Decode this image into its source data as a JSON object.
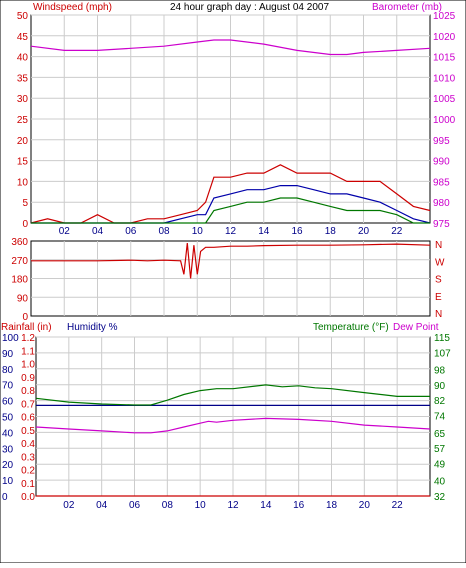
{
  "header": {
    "left_label": "Windspeed (mph)",
    "center_title": "24 hour graph day : August 04 2007",
    "right_label": "Barometer (mb)"
  },
  "bottom_header": {
    "rainfall_label": "Rainfall (in)",
    "humidity_label": "Humidity %",
    "temperature_label": "Temperature (°F)",
    "dewpoint_label": "Dew Point"
  },
  "colors": {
    "red": "#cc0000",
    "blue": "#0000aa",
    "green": "#007700",
    "magenta": "#cc00cc",
    "navy": "#000088",
    "grid": "#cccccc"
  },
  "chart_data": [
    {
      "type": "line",
      "name": "wind-baro",
      "x_ticks": [
        "02",
        "04",
        "06",
        "08",
        "10",
        "12",
        "14",
        "16",
        "18",
        "20",
        "22"
      ],
      "x_range": [
        0,
        24
      ],
      "left_axis": {
        "label": "Windspeed (mph)",
        "ticks": [
          "0",
          "5",
          "10",
          "15",
          "20",
          "25",
          "30",
          "35",
          "40",
          "45",
          "50"
        ],
        "range": [
          0,
          50
        ]
      },
      "right_axis": {
        "label": "Barometer (mb)",
        "ticks": [
          "975",
          "980",
          "985",
          "990",
          "995",
          "1000",
          "1005",
          "1010",
          "1015",
          "1020",
          "1025"
        ],
        "range": [
          975,
          1025
        ]
      },
      "series": [
        {
          "color": "magenta",
          "axis": "right",
          "x": [
            0,
            2,
            4,
            6,
            8,
            10,
            11,
            12,
            14,
            16,
            18,
            19,
            20,
            22,
            24
          ],
          "values": [
            1017.5,
            1016.5,
            1016.5,
            1017,
            1017.5,
            1018.5,
            1019,
            1019,
            1018,
            1016.5,
            1015.5,
            1015.5,
            1016,
            1016.5,
            1017
          ]
        },
        {
          "color": "red",
          "axis": "left",
          "x": [
            0,
            1,
            2,
            3,
            4,
            5,
            6,
            7,
            8,
            9,
            10,
            10.5,
            11,
            11.5,
            12,
            13,
            14,
            15,
            16,
            17,
            18,
            19,
            20,
            21,
            22,
            23,
            24
          ],
          "values": [
            0,
            1,
            0,
            0,
            2,
            0,
            0,
            1,
            1,
            2,
            3,
            5,
            11,
            11,
            11,
            12,
            12,
            14,
            12,
            12,
            12,
            10,
            10,
            10,
            7,
            4,
            3
          ]
        },
        {
          "color": "blue",
          "axis": "left",
          "x": [
            0,
            8,
            9,
            10,
            10.5,
            11,
            12,
            13,
            14,
            15,
            16,
            17,
            18,
            19,
            20,
            21,
            22,
            23,
            24
          ],
          "values": [
            0,
            0,
            1,
            2,
            2,
            6,
            7,
            8,
            8,
            9,
            9,
            8,
            7,
            7,
            6,
            5,
            3,
            1,
            0
          ]
        },
        {
          "color": "green",
          "axis": "left",
          "x": [
            0,
            9,
            10,
            10.5,
            11,
            12,
            13,
            14,
            15,
            16,
            17,
            18,
            19,
            20,
            21,
            22,
            23,
            24
          ],
          "values": [
            0,
            0,
            0,
            0,
            3,
            4,
            5,
            5,
            6,
            6,
            5,
            4,
            3,
            3,
            3,
            2,
            0,
            0
          ]
        }
      ]
    },
    {
      "type": "line",
      "name": "wind-direction",
      "left_axis": {
        "ticks": [
          "0",
          "90",
          "180",
          "270",
          "360"
        ],
        "range": [
          0,
          360
        ]
      },
      "right_axis": {
        "ticks": [
          "N",
          "W",
          "S",
          "E",
          "N"
        ]
      },
      "x_range": [
        0,
        24
      ],
      "series": [
        {
          "color": "red",
          "x": [
            0,
            2,
            4,
            6,
            7,
            8,
            9,
            9.2,
            9.4,
            9.6,
            9.8,
            10,
            10.2,
            10.5,
            11,
            12,
            13,
            14,
            16,
            18,
            20,
            22,
            24
          ],
          "values": [
            265,
            265,
            265,
            268,
            265,
            268,
            265,
            200,
            350,
            180,
            340,
            200,
            310,
            330,
            330,
            335,
            335,
            338,
            340,
            340,
            342,
            345,
            340
          ]
        }
      ]
    },
    {
      "type": "line",
      "name": "temp-humidity",
      "x_ticks": [
        "02",
        "04",
        "06",
        "08",
        "10",
        "12",
        "14",
        "16",
        "18",
        "20",
        "22"
      ],
      "x_range": [
        0,
        24
      ],
      "rainfall_axis": {
        "label": "Rainfall (in)",
        "ticks": [
          "0.0",
          "0.1",
          "0.2",
          "0.3",
          "0.4",
          "0.5",
          "0.6",
          "0.7",
          "0.8",
          "0.9",
          "1.0",
          "1.1",
          "1.2"
        ],
        "range": [
          0,
          1.2
        ]
      },
      "humidity_axis": {
        "label": "Humidity %",
        "ticks": [
          "0",
          "10",
          "20",
          "30",
          "40",
          "50",
          "60",
          "70",
          "80",
          "90",
          "100"
        ],
        "range": [
          0,
          100
        ]
      },
      "temperature_axis": {
        "label": "Temperature (°F)",
        "ticks": [
          "32",
          "40",
          "49",
          "57",
          "65",
          "74",
          "82",
          "90",
          "98",
          "107",
          "115"
        ],
        "range": [
          32,
          115
        ]
      },
      "series": [
        {
          "name": "Humidity %",
          "color": "navy",
          "axis": "humidity",
          "x": [
            0,
            24
          ],
          "values": [
            57,
            57
          ]
        },
        {
          "name": "Temperature (°F)",
          "color": "green",
          "axis": "temperature",
          "x": [
            0,
            2,
            4,
            6,
            7,
            8,
            9,
            10,
            11,
            12,
            14,
            15,
            16,
            17,
            18,
            20,
            22,
            24
          ],
          "values": [
            83,
            81,
            80,
            79.5,
            79.5,
            82,
            85,
            87,
            88,
            88,
            90,
            89,
            89.5,
            88.5,
            88,
            86,
            84,
            84
          ]
        },
        {
          "name": "Dew Point",
          "color": "magenta",
          "axis": "temperature",
          "x": [
            0,
            2,
            4,
            6,
            7,
            8,
            9,
            10,
            10.5,
            11,
            12,
            14,
            16,
            18,
            20,
            22,
            24
          ],
          "values": [
            68,
            67,
            66,
            65,
            65,
            66,
            68,
            70,
            71,
            70.5,
            71.5,
            72.5,
            72,
            71,
            69,
            68,
            67
          ]
        },
        {
          "name": "Rainfall (in)",
          "color": "red",
          "axis": "rainfall",
          "x": [
            0,
            24
          ],
          "values": [
            0,
            0
          ]
        }
      ]
    }
  ]
}
